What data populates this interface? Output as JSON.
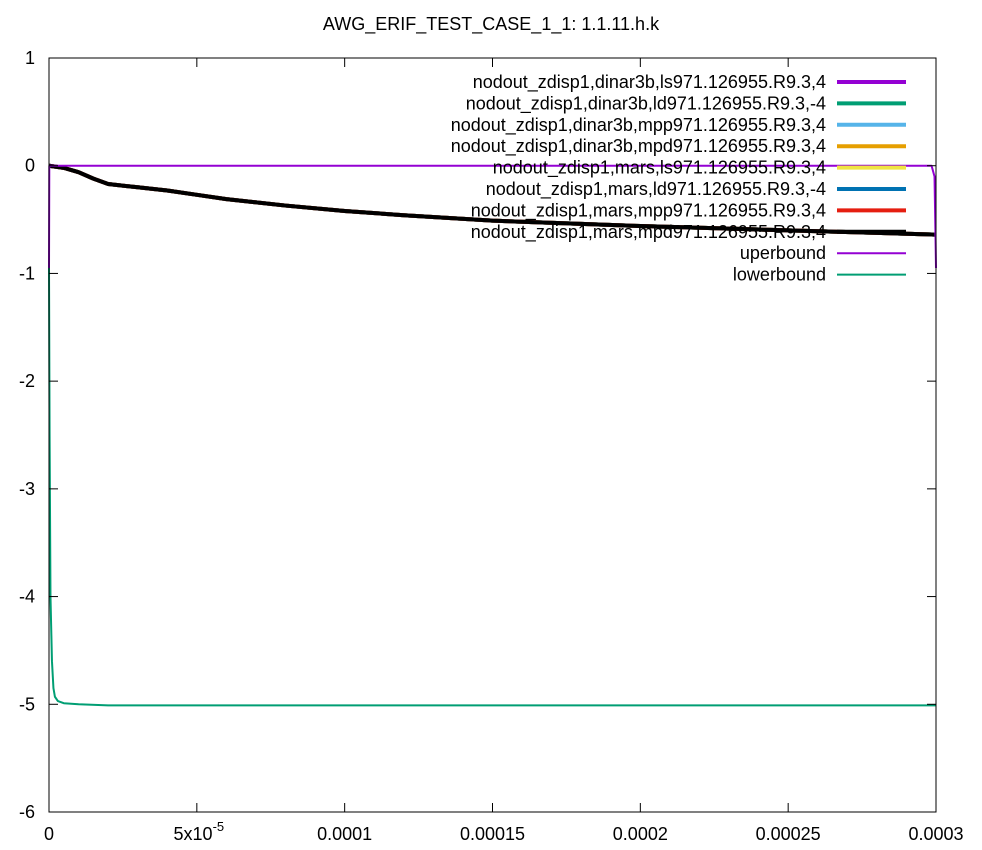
{
  "chart_data": {
    "type": "line",
    "title": "AWG_ERIF_TEST_CASE_1_1: 1.1.11.h.k",
    "xlabel": "",
    "ylabel": "",
    "xlim": [
      0,
      0.0003
    ],
    "ylim": [
      -6,
      1
    ],
    "xticks": [
      {
        "value": 0,
        "label": "0"
      },
      {
        "value": 5e-05,
        "label": "5x10",
        "sup": "-5"
      },
      {
        "value": 0.0001,
        "label": "0.0001"
      },
      {
        "value": 0.00015,
        "label": "0.00015"
      },
      {
        "value": 0.0002,
        "label": "0.0002"
      },
      {
        "value": 0.00025,
        "label": "0.00025"
      },
      {
        "value": 0.0003,
        "label": "0.0003"
      }
    ],
    "yticks": [
      {
        "value": 1,
        "label": "1"
      },
      {
        "value": 0,
        "label": "0"
      },
      {
        "value": -1,
        "label": "-1"
      },
      {
        "value": -2,
        "label": "-2"
      },
      {
        "value": -3,
        "label": "-3"
      },
      {
        "value": -4,
        "label": "-4"
      },
      {
        "value": -5,
        "label": "-5"
      },
      {
        "value": -6,
        "label": "-6"
      }
    ],
    "grid": false,
    "legend_position": "top-right",
    "series": [
      {
        "name": "nodout_zdisp1,dinar3b,ls971.126955.R9.3,4",
        "color": "#9400d3",
        "width": 4,
        "x": [
          0,
          5e-06,
          1e-05,
          1.5e-05,
          2e-05,
          3e-05,
          4e-05,
          5e-05,
          6e-05,
          8e-05,
          0.0001,
          0.00012,
          0.00015,
          0.00018,
          0.0002,
          0.00025,
          0.0003
        ],
        "y": [
          0,
          -0.02,
          -0.06,
          -0.12,
          -0.17,
          -0.2,
          -0.23,
          -0.27,
          -0.31,
          -0.37,
          -0.42,
          -0.46,
          -0.51,
          -0.54,
          -0.56,
          -0.6,
          -0.64
        ]
      },
      {
        "name": "nodout_zdisp1,dinar3b,ld971.126955.R9.3,-4",
        "color": "#009e73",
        "width": 4,
        "x": [
          0,
          5e-06,
          1e-05,
          1.5e-05,
          2e-05,
          3e-05,
          4e-05,
          5e-05,
          6e-05,
          8e-05,
          0.0001,
          0.00012,
          0.00015,
          0.00018,
          0.0002,
          0.00025,
          0.0003
        ],
        "y": [
          0,
          -0.02,
          -0.06,
          -0.12,
          -0.17,
          -0.2,
          -0.23,
          -0.27,
          -0.31,
          -0.37,
          -0.42,
          -0.46,
          -0.51,
          -0.54,
          -0.56,
          -0.6,
          -0.64
        ]
      },
      {
        "name": "nodout_zdisp1,dinar3b,mpp971.126955.R9.3,4",
        "color": "#56b4e9",
        "width": 4,
        "x": [
          0,
          5e-06,
          1e-05,
          1.5e-05,
          2e-05,
          3e-05,
          4e-05,
          5e-05,
          6e-05,
          8e-05,
          0.0001,
          0.00012,
          0.00015,
          0.00018,
          0.0002,
          0.00025,
          0.0003
        ],
        "y": [
          0,
          -0.02,
          -0.06,
          -0.12,
          -0.17,
          -0.2,
          -0.23,
          -0.27,
          -0.31,
          -0.37,
          -0.42,
          -0.46,
          -0.51,
          -0.54,
          -0.56,
          -0.6,
          -0.64
        ]
      },
      {
        "name": "nodout_zdisp1,dinar3b,mpd971.126955.R9.3,4",
        "color": "#e69f00",
        "width": 4,
        "x": [
          0,
          5e-06,
          1e-05,
          1.5e-05,
          2e-05,
          3e-05,
          4e-05,
          5e-05,
          6e-05,
          8e-05,
          0.0001,
          0.00012,
          0.00015,
          0.00018,
          0.0002,
          0.00025,
          0.0003
        ],
        "y": [
          0,
          -0.02,
          -0.06,
          -0.12,
          -0.17,
          -0.2,
          -0.23,
          -0.27,
          -0.31,
          -0.37,
          -0.42,
          -0.46,
          -0.51,
          -0.54,
          -0.56,
          -0.6,
          -0.64
        ]
      },
      {
        "name": "nodout_zdisp1,mars,ls971.126955.R9.3,4",
        "color": "#f0e442",
        "width": 4,
        "x": [
          0,
          5e-06,
          1e-05,
          1.5e-05,
          2e-05,
          3e-05,
          4e-05,
          5e-05,
          6e-05,
          8e-05,
          0.0001,
          0.00012,
          0.00015,
          0.00018,
          0.0002,
          0.00025,
          0.0003
        ],
        "y": [
          0,
          -0.02,
          -0.06,
          -0.12,
          -0.17,
          -0.2,
          -0.23,
          -0.27,
          -0.31,
          -0.37,
          -0.42,
          -0.46,
          -0.51,
          -0.54,
          -0.56,
          -0.6,
          -0.64
        ]
      },
      {
        "name": "nodout_zdisp1,mars,ld971.126955.R9.3,-4",
        "color": "#0072b2",
        "width": 4,
        "x": [
          0,
          5e-06,
          1e-05,
          1.5e-05,
          2e-05,
          3e-05,
          4e-05,
          5e-05,
          6e-05,
          8e-05,
          0.0001,
          0.00012,
          0.00015,
          0.00018,
          0.0002,
          0.00025,
          0.0003
        ],
        "y": [
          0,
          -0.02,
          -0.06,
          -0.12,
          -0.17,
          -0.2,
          -0.23,
          -0.27,
          -0.31,
          -0.37,
          -0.42,
          -0.46,
          -0.51,
          -0.54,
          -0.56,
          -0.6,
          -0.64
        ]
      },
      {
        "name": "nodout_zdisp1,mars,mpp971.126955.R9.3,4",
        "color": "#e51e10",
        "width": 4,
        "x": [
          0,
          5e-06,
          1e-05,
          1.5e-05,
          2e-05,
          3e-05,
          4e-05,
          5e-05,
          6e-05,
          8e-05,
          0.0001,
          0.00012,
          0.00015,
          0.00018,
          0.0002,
          0.00025,
          0.0003
        ],
        "y": [
          0,
          -0.02,
          -0.06,
          -0.12,
          -0.17,
          -0.2,
          -0.23,
          -0.27,
          -0.31,
          -0.37,
          -0.42,
          -0.46,
          -0.51,
          -0.54,
          -0.56,
          -0.6,
          -0.64
        ]
      },
      {
        "name": "nodout_zdisp1,mars,mpd971.126955.R9.3,4",
        "color": "#000000",
        "width": 4,
        "x": [
          0,
          5e-06,
          1e-05,
          1.5e-05,
          2e-05,
          3e-05,
          4e-05,
          5e-05,
          6e-05,
          8e-05,
          0.0001,
          0.00012,
          0.00015,
          0.00018,
          0.0002,
          0.00025,
          0.0003
        ],
        "y": [
          0,
          -0.02,
          -0.06,
          -0.12,
          -0.17,
          -0.2,
          -0.23,
          -0.27,
          -0.31,
          -0.37,
          -0.42,
          -0.46,
          -0.51,
          -0.54,
          -0.56,
          -0.6,
          -0.64
        ]
      },
      {
        "name": "uperbound",
        "color": "#9400d3",
        "width": 2,
        "x": [
          0,
          1e-07,
          1e-06,
          0.0001,
          0.0002,
          0.0002985,
          0.0002995,
          0.0003
        ],
        "y": [
          -0.95,
          0,
          0,
          0,
          0,
          0,
          -0.1,
          -0.95
        ]
      },
      {
        "name": "lowerbound",
        "color": "#009e73",
        "width": 2,
        "x": [
          0,
          2e-07,
          5e-07,
          1e-06,
          1.5e-06,
          2e-06,
          3e-06,
          5e-06,
          1e-05,
          2e-05,
          5e-05,
          0.0001,
          0.0002,
          0.0003
        ],
        "y": [
          -0.95,
          -2.5,
          -4.0,
          -4.6,
          -4.85,
          -4.93,
          -4.97,
          -4.99,
          -5.0,
          -5.01,
          -5.01,
          -5.01,
          -5.01,
          -5.01
        ]
      }
    ]
  }
}
